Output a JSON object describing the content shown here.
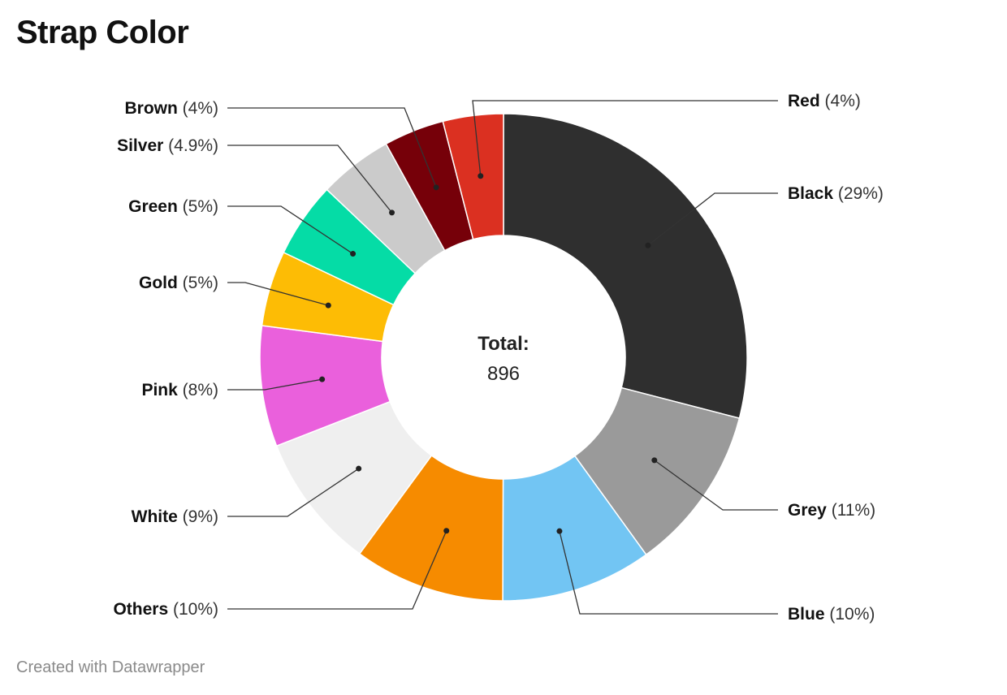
{
  "title": "Strap Color",
  "footer": "Created with Datawrapper",
  "center": {
    "label": "Total:",
    "value": "896"
  },
  "chart_data": {
    "type": "pie",
    "variant": "donut",
    "title": "Strap Color",
    "total": 896,
    "legend": "labels-outside-with-leader-lines",
    "slices": [
      {
        "name": "Black",
        "pct_label": "(29%)",
        "value": 29,
        "color": "#2f2f2f"
      },
      {
        "name": "Grey",
        "pct_label": "(11%)",
        "value": 11,
        "color": "#9a9a9a"
      },
      {
        "name": "Blue",
        "pct_label": "(10%)",
        "value": 10,
        "color": "#72c5f3"
      },
      {
        "name": "Others",
        "pct_label": "(10%)",
        "value": 10,
        "color": "#f68b00"
      },
      {
        "name": "White",
        "pct_label": "(9%)",
        "value": 9,
        "color": "#efefef"
      },
      {
        "name": "Pink",
        "pct_label": "(8%)",
        "value": 8,
        "color": "#ea60dc"
      },
      {
        "name": "Gold",
        "pct_label": "(5%)",
        "value": 5,
        "color": "#fdbc05"
      },
      {
        "name": "Green",
        "pct_label": "(5%)",
        "value": 5,
        "color": "#05dca6"
      },
      {
        "name": "Silver",
        "pct_label": "(4.9%)",
        "value": 4.9,
        "color": "#cbcbcb"
      },
      {
        "name": "Brown",
        "pct_label": "(4%)",
        "value": 4,
        "color": "#760009"
      },
      {
        "name": "Red",
        "pct_label": "(4%)",
        "value": 4,
        "color": "#db3021"
      }
    ]
  }
}
